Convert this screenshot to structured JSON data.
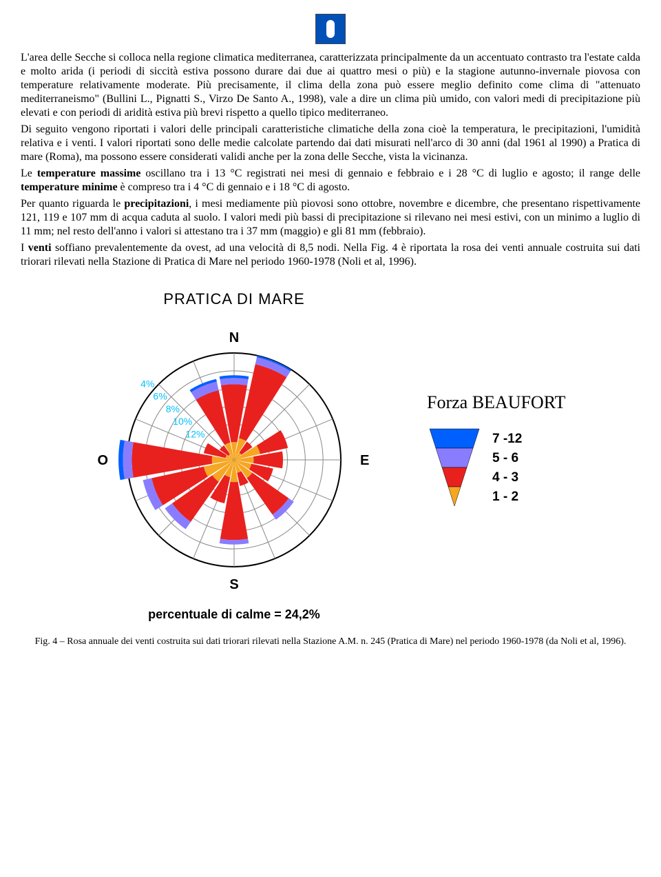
{
  "paragraphs": {
    "p1": "L'area delle Secche si colloca nella regione climatica mediterranea, caratterizzata principalmente da un accentuato contrasto tra l'estate calda e molto arida (i periodi di siccità estiva possono durare dai due ai quattro mesi o più) e la stagione autunno-invernale piovosa con temperature relativamente moderate. Più precisamente, il clima della zona può essere meglio definito come clima di \"attenuato mediterraneismo\" (Bullini L., Pignatti S., Virzo De Santo A., 1998), vale a dire un clima più umido, con valori medi di precipitazione più elevati e con periodi di aridità estiva più brevi rispetto a quello tipico mediterraneo.",
    "p2": "Di seguito vengono riportati i valori delle principali caratteristiche climatiche della zona cioè la temperatura, le precipitazioni, l'umidità relativa e i venti. I valori riportati sono delle medie calcolate partendo dai dati misurati nell'arco di 30 anni (dal 1961 al 1990) a Pratica di mare (Roma), ma possono essere considerati validi anche per la zona delle Secche, vista la vicinanza.",
    "p3a": "Le ",
    "p3b": "temperature massime",
    "p3c": " oscillano tra i 13 °C registrati nei mesi di gennaio e febbraio e i 28 °C di luglio e agosto; il range delle ",
    "p3d": "temperature minime",
    "p3e": " è compreso tra i 4 °C di gennaio e i 18 °C di agosto.",
    "p4a": "Per quanto riguarda le ",
    "p4b": "precipitazioni",
    "p4c": ", i mesi mediamente più piovosi sono ottobre, novembre e dicembre, che presentano rispettivamente 121, 119 e 107 mm di acqua caduta al suolo. I valori medi più bassi di precipitazione si rilevano nei mesi estivi, con un minimo a luglio di 11 mm; nel resto dell'anno i valori si attestano tra i 37 mm (maggio) e gli 81 mm (febbraio).",
    "p5a": "I ",
    "p5b": "venti",
    "p5c": " soffiano prevalentemente da ovest, ad una velocità di 8,5 nodi. Nella Fig. 4 è riportata la rosa dei venti  annuale costruita sui dati triorari rilevati nella Stazione di Pratica di Mare nel periodo 1960-1978 (Noli et al, 1996)."
  },
  "windrose": {
    "type": "windrose",
    "title": "PRATICA DI MARE",
    "cardinal": {
      "N": "N",
      "E": "E",
      "S": "S",
      "O": "O"
    },
    "rings": [
      4,
      6,
      8,
      10,
      12
    ],
    "ring_labels": [
      "12%",
      "10%",
      "8%",
      "6%",
      "4%"
    ],
    "ring_label_color": "#00bfff",
    "ring_label_fontsize": 14,
    "max_radius_pct": 12,
    "rose_outer_color": "#000000",
    "rose_grid_color": "#888888",
    "background": "#ffffff",
    "petal_half_angle_deg": 10,
    "beaufort_bands": [
      {
        "label": "7 -12",
        "color": "#0060ff"
      },
      {
        "label": "5 - 6",
        "color": "#8a7cff"
      },
      {
        "label": "4 - 3",
        "color": "#e8211f"
      },
      {
        "label": "1 - 2",
        "color": "#f5a623"
      }
    ],
    "directions": [
      {
        "name": "N",
        "angle": 0,
        "stack": [
          {
            "band": 3,
            "to": 2.0
          },
          {
            "band": 2,
            "to": 8.5
          },
          {
            "band": 1,
            "to": 9.2
          },
          {
            "band": 0,
            "to": 9.5
          }
        ]
      },
      {
        "name": "NNE",
        "angle": 22.5,
        "stack": [
          {
            "band": 3,
            "to": 2.5
          },
          {
            "band": 2,
            "to": 11.0
          },
          {
            "band": 1,
            "to": 11.8
          },
          {
            "band": 0,
            "to": 12.0
          }
        ]
      },
      {
        "name": "NE",
        "angle": 45,
        "stack": [
          {
            "band": 3,
            "to": 1.0
          },
          {
            "band": 2,
            "to": 2.5
          }
        ]
      },
      {
        "name": "ENE",
        "angle": 67.5,
        "stack": [
          {
            "band": 3,
            "to": 3.0
          },
          {
            "band": 2,
            "to": 6.2
          }
        ]
      },
      {
        "name": "E",
        "angle": 90,
        "stack": [
          {
            "band": 3,
            "to": 2.2
          },
          {
            "band": 2,
            "to": 5.5
          }
        ]
      },
      {
        "name": "ESE",
        "angle": 112.5,
        "stack": [
          {
            "band": 3,
            "to": 2.0
          },
          {
            "band": 2,
            "to": 4.5
          }
        ]
      },
      {
        "name": "SE",
        "angle": 135,
        "stack": [
          {
            "band": 3,
            "to": 2.5
          },
          {
            "band": 2,
            "to": 7.5
          },
          {
            "band": 1,
            "to": 8.2
          }
        ]
      },
      {
        "name": "SSE",
        "angle": 157.5,
        "stack": [
          {
            "band": 3,
            "to": 1.5
          },
          {
            "band": 2,
            "to": 3.0
          }
        ]
      },
      {
        "name": "S",
        "angle": 180,
        "stack": [
          {
            "band": 3,
            "to": 2.5
          },
          {
            "band": 2,
            "to": 9.0
          },
          {
            "band": 1,
            "to": 9.5
          }
        ]
      },
      {
        "name": "SSW",
        "angle": 202.5,
        "stack": [
          {
            "band": 3,
            "to": 2.0
          },
          {
            "band": 2,
            "to": 5.0
          }
        ]
      },
      {
        "name": "SW",
        "angle": 225,
        "stack": [
          {
            "band": 3,
            "to": 3.0
          },
          {
            "band": 2,
            "to": 8.5
          },
          {
            "band": 1,
            "to": 9.5
          }
        ]
      },
      {
        "name": "WSW",
        "angle": 247.5,
        "stack": [
          {
            "band": 3,
            "to": 3.5
          },
          {
            "band": 2,
            "to": 9.5
          },
          {
            "band": 1,
            "to": 10.5
          }
        ]
      },
      {
        "name": "W",
        "angle": 270,
        "stack": [
          {
            "band": 3,
            "to": 2.5
          },
          {
            "band": 2,
            "to": 11.5
          },
          {
            "band": 1,
            "to": 12.5
          },
          {
            "band": 0,
            "to": 13.0
          }
        ]
      },
      {
        "name": "WNW",
        "angle": 292.5,
        "stack": [
          {
            "band": 3,
            "to": 1.0
          },
          {
            "band": 2,
            "to": 3.5
          }
        ]
      },
      {
        "name": "NW",
        "angle": 315,
        "stack": [
          {
            "band": 3,
            "to": 0.8
          },
          {
            "band": 2,
            "to": 2.0
          }
        ]
      },
      {
        "name": "NNW",
        "angle": 337.5,
        "stack": [
          {
            "band": 3,
            "to": 2.0
          },
          {
            "band": 2,
            "to": 8.0
          },
          {
            "band": 1,
            "to": 9.0
          },
          {
            "band": 0,
            "to": 9.3
          }
        ]
      }
    ],
    "calms_label": "percentuale di calme = 24,2%",
    "legend_title": "Forza BEAUFORT"
  },
  "caption": "Fig. 4 – Rosa annuale dei venti costruita sui dati triorari rilevati nella Stazione A.M. n. 245 (Pratica di Mare) nel periodo 1960-1978 (da Noli et al, 1996)."
}
